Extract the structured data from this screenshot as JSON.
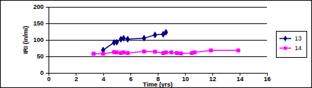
{
  "chart_data": {
    "type": "line",
    "x_label": "Time (yrs)",
    "y_label": "IRI (in/mi)",
    "x": [
      3.3,
      4.0,
      4.8,
      5.0,
      5.3,
      5.5,
      5.8,
      7.0,
      7.8,
      8.4,
      8.6,
      9.0,
      9.4,
      9.7,
      10.5,
      10.7,
      11.9,
      13.9
    ],
    "series": [
      {
        "name": "13",
        "color": "#000080",
        "marker": "diamond",
        "line_style": "solid",
        "values": [
          null,
          69,
          92,
          93,
          102,
          105,
          102,
          105,
          115,
          117,
          123,
          null,
          null,
          null,
          null,
          null,
          null,
          null
        ]
      },
      {
        "name": "14",
        "color": "#ff00ff",
        "marker": "square",
        "line_style": "solid",
        "values": [
          58,
          58,
          63,
          62,
          60,
          62,
          60,
          65,
          64,
          60,
          62,
          62,
          60,
          59,
          60,
          62,
          68,
          68
        ]
      }
    ],
    "xlim": [
      0,
      16
    ],
    "xticks": [
      0,
      2,
      4,
      6,
      8,
      10,
      12,
      14,
      16
    ],
    "ylim": [
      0,
      200
    ],
    "yticks": [
      0,
      50,
      100,
      150,
      200
    ],
    "grid": true,
    "legend": "right"
  }
}
